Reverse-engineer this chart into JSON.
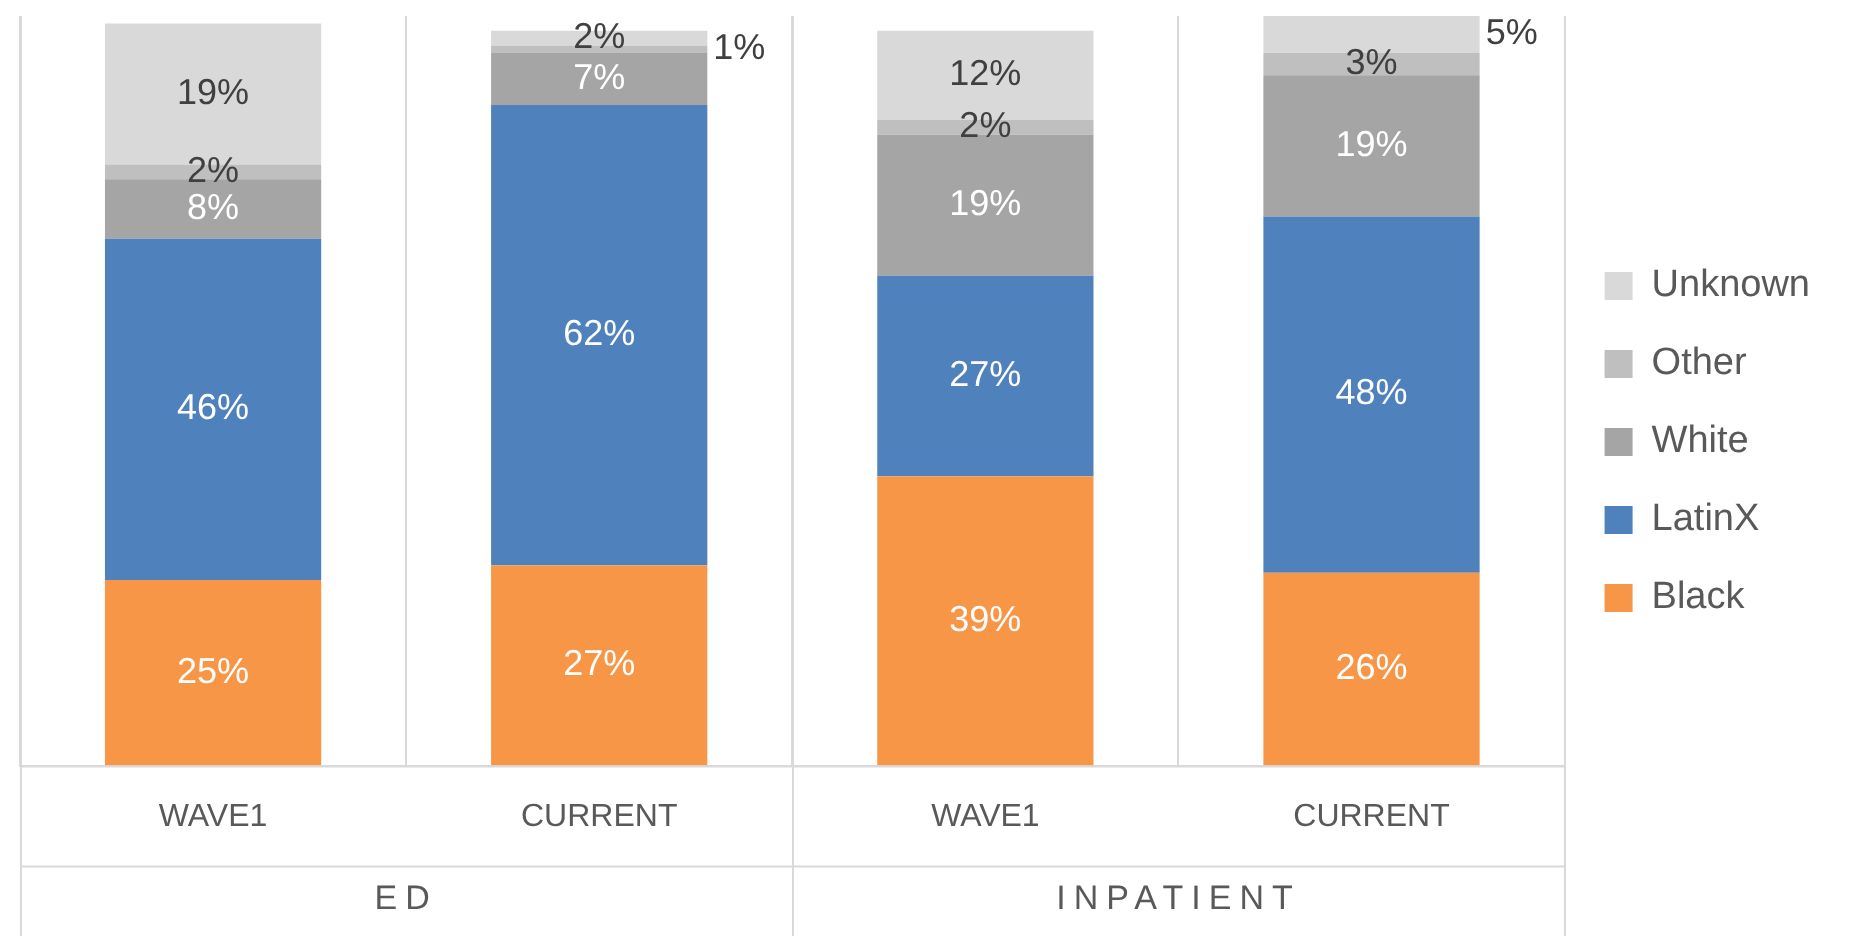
{
  "chart_data": {
    "type": "bar",
    "stacked": true,
    "categories": [
      "WAVE1",
      "CURRENT",
      "WAVE1",
      "CURRENT"
    ],
    "series": [
      {
        "name": "Black",
        "color": "#f79646",
        "values": [
          25,
          27,
          39,
          26
        ],
        "value_labels": [
          "25%",
          "27%",
          "39%",
          "26%"
        ]
      },
      {
        "name": "LatinX",
        "color": "#4f81bd",
        "values": [
          46,
          62,
          27,
          48
        ],
        "value_labels": [
          "46%",
          "62%",
          "27%",
          "48%"
        ]
      },
      {
        "name": "White",
        "color": "#a5a5a5",
        "values": [
          8,
          7,
          19,
          19
        ],
        "value_labels": [
          "8%",
          "7%",
          "19%",
          "19%"
        ]
      },
      {
        "name": "Other",
        "color": "#bfbfbf",
        "values": [
          2,
          1,
          2,
          3
        ],
        "value_labels": [
          "2%",
          "1%",
          "2%",
          "3%"
        ]
      },
      {
        "name": "Unknown",
        "color": "#d9d9d9",
        "values": [
          19,
          2,
          12,
          5
        ],
        "value_labels": [
          "19%",
          "2%",
          "12%",
          "5%"
        ]
      }
    ],
    "annotations": [
      "ED",
      "INPATIENT"
    ],
    "legend": "right",
    "grid": "x"
  }
}
